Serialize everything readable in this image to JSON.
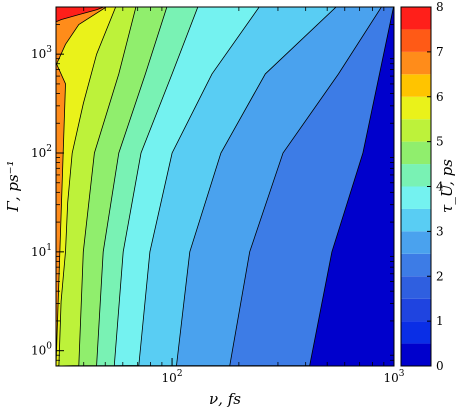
{
  "chart_data": {
    "type": "heatmap",
    "subtype": "filled-contour",
    "xlabel": "ν, fs",
    "ylabel": "Γ, ps⁻¹",
    "colorbar_label": "τ_U, ps",
    "x_scale": "log",
    "y_scale": "log",
    "xlim": [
      30,
      1000
    ],
    "ylim": [
      0.7,
      3000
    ],
    "x_ticks": [
      {
        "value": 100,
        "label": "10",
        "exp": "2"
      },
      {
        "value": 1000,
        "label": "10",
        "exp": "3"
      }
    ],
    "y_ticks": [
      {
        "value": 1,
        "label": "10",
        "exp": "0"
      },
      {
        "value": 10,
        "label": "10",
        "exp": "1"
      },
      {
        "value": 100,
        "label": "10",
        "exp": "2"
      },
      {
        "value": 1000,
        "label": "10",
        "exp": "3"
      }
    ],
    "colorbar_ticks": [
      "0",
      "1",
      "2",
      "3",
      "4",
      "5",
      "6",
      "7",
      "8"
    ],
    "levels": [
      0,
      0.5,
      1,
      1.5,
      2,
      2.5,
      3,
      3.5,
      4,
      4.5,
      5,
      5.5,
      6,
      6.5,
      7,
      7.5,
      8
    ],
    "colors": [
      "#0000cc",
      "#0a2ee6",
      "#1f44e0",
      "#2f5fe0",
      "#3d7ce6",
      "#4aa2ee",
      "#59cdf3",
      "#74f2f0",
      "#79f2b4",
      "#90ee6d",
      "#bdf23a",
      "#eaf21a",
      "#ffc400",
      "#ff8c1a",
      "#ff5a16",
      "#ff1f1a",
      "#e11412",
      "#9c0b08"
    ],
    "contour_boundaries_log10_nu": [
      {
        "level": 7.0,
        "points": [
          [
            3.3,
            1.45,
            1.59
          ],
          [
            3.35,
            1.5,
            1.6
          ],
          [
            3.4,
            1.58,
            1.62
          ],
          [
            3.45,
            1.66,
            1.64
          ],
          [
            3.5,
            1.72,
            1.66
          ]
        ]
      },
      {
        "level": 6.0,
        "points": [
          [
            2.7,
            1.52,
            1.56
          ],
          [
            2.9,
            1.48,
            1.57
          ],
          [
            3.1,
            1.52,
            1.58
          ],
          [
            3.3,
            1.58,
            1.68
          ],
          [
            3.5,
            1.72,
            1.7
          ]
        ]
      },
      {
        "level": 5.0,
        "points": [
          [
            -0.15,
            1.49,
            1.52
          ],
          [
            0.5,
            1.5,
            1.5
          ],
          [
            1.0,
            1.52,
            1.52
          ],
          [
            1.5,
            1.53,
            1.53
          ],
          [
            2.0,
            1.55,
            1.56
          ],
          [
            2.5,
            1.6,
            1.62
          ],
          [
            3.0,
            1.66,
            1.68
          ],
          [
            3.5,
            1.75,
            1.76
          ]
        ]
      },
      {
        "level": 4.5,
        "points": [
          [
            -0.15,
            1.58,
            1.58
          ],
          [
            1.0,
            1.6,
            1.6
          ],
          [
            2.0,
            1.65,
            1.66
          ],
          [
            2.8,
            1.76,
            1.78
          ],
          [
            3.5,
            1.84,
            1.86
          ]
        ]
      },
      {
        "level": 4.0,
        "points": [
          [
            -0.15,
            1.66,
            1.66
          ],
          [
            1.0,
            1.69,
            1.69
          ],
          [
            2.0,
            1.76,
            1.78
          ],
          [
            2.8,
            1.88,
            1.9
          ],
          [
            3.5,
            1.98,
            2.0
          ]
        ]
      },
      {
        "level": 3.5,
        "points": [
          [
            -0.15,
            1.74,
            1.74
          ],
          [
            1.0,
            1.78,
            1.78
          ],
          [
            2.0,
            1.86,
            1.9
          ],
          [
            2.8,
            2.0,
            2.06
          ],
          [
            3.5,
            2.12,
            2.16
          ]
        ]
      },
      {
        "level": 3.0,
        "points": [
          [
            -0.15,
            1.85,
            1.85
          ],
          [
            1.0,
            1.9,
            1.92
          ],
          [
            2.0,
            2.0,
            2.05
          ],
          [
            2.8,
            2.18,
            2.26
          ],
          [
            3.5,
            2.4,
            2.5
          ]
        ]
      },
      {
        "level": 2.5,
        "points": [
          [
            -0.15,
            2.02,
            2.02
          ],
          [
            1.0,
            2.08,
            2.1
          ],
          [
            2.0,
            2.22,
            2.28
          ],
          [
            2.8,
            2.42,
            2.55
          ],
          [
            3.5,
            2.75,
            2.9
          ]
        ]
      },
      {
        "level": 2.0,
        "points": [
          [
            -0.15,
            2.26,
            2.3
          ],
          [
            1.0,
            2.35,
            2.4
          ],
          [
            2.0,
            2.5,
            2.6
          ],
          [
            2.8,
            2.75,
            2.85
          ],
          [
            3.5,
            2.95,
            3.0
          ]
        ]
      },
      {
        "level": 1.5,
        "points": [
          [
            -0.15,
            2.62,
            2.66
          ],
          [
            1.0,
            2.72,
            2.78
          ],
          [
            2.0,
            2.86,
            2.92
          ],
          [
            3.5,
            3.0,
            3.0
          ]
        ]
      }
    ]
  }
}
